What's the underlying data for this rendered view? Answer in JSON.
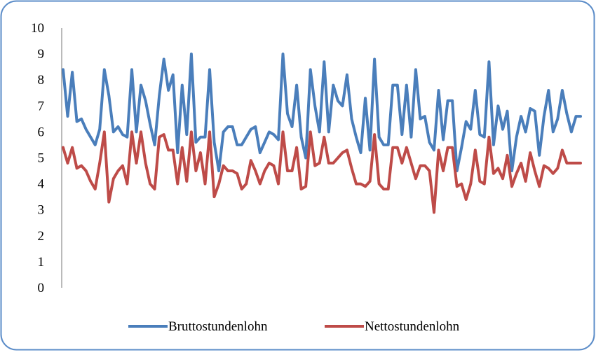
{
  "chart_data": {
    "type": "line",
    "title": "",
    "xlabel": "",
    "ylabel": "",
    "ylim": [
      0,
      10
    ],
    "yticks": [
      "0",
      "1",
      "2",
      "3",
      "4",
      "5",
      "6",
      "7",
      "8",
      "9",
      "10"
    ],
    "grid": false,
    "legend": "bottom",
    "series": [
      {
        "name": "Bruttostundenlohn",
        "color": "#4a7ebb",
        "values": [
          8.4,
          6.6,
          8.3,
          6.4,
          6.5,
          6.1,
          5.8,
          5.5,
          6.1,
          8.4,
          7.4,
          6.0,
          6.2,
          5.9,
          5.8,
          8.4,
          6.0,
          7.8,
          7.2,
          6.3,
          5.5,
          7.4,
          8.8,
          7.6,
          8.2,
          5.2,
          7.8,
          5.9,
          9.0,
          5.6,
          5.8,
          5.8,
          8.4,
          5.6,
          4.5,
          6.0,
          6.2,
          6.2,
          5.5,
          5.5,
          5.8,
          6.1,
          6.2,
          5.2,
          5.6,
          6.0,
          5.9,
          5.7,
          9.0,
          6.7,
          6.2,
          7.8,
          5.8,
          5.0,
          8.4,
          7.0,
          6.0,
          8.7,
          6.0,
          7.8,
          7.2,
          7.0,
          8.2,
          6.5,
          5.8,
          5.2,
          7.3,
          5.3,
          8.8,
          5.8,
          5.5,
          5.5,
          7.8,
          7.8,
          5.9,
          7.8,
          5.8,
          8.4,
          6.5,
          6.6,
          5.6,
          5.3,
          7.6,
          5.7,
          7.2,
          7.2,
          4.5,
          5.4,
          6.4,
          6.1,
          7.6,
          5.9,
          5.8,
          8.7,
          5.5,
          7.0,
          6.1,
          6.8,
          4.5,
          5.8,
          6.6,
          6.0,
          6.9,
          6.8,
          5.1,
          6.6,
          7.6,
          6.0,
          6.5,
          7.6,
          6.7,
          6.0,
          6.6,
          6.6
        ]
      },
      {
        "name": "Nettostundenlohn",
        "color": "#be4b48",
        "values": [
          5.4,
          4.8,
          5.4,
          4.6,
          4.7,
          4.5,
          4.1,
          3.8,
          4.8,
          6.0,
          3.3,
          4.2,
          4.5,
          4.7,
          4.0,
          6.0,
          4.8,
          6.0,
          4.8,
          4.0,
          3.8,
          5.8,
          5.9,
          5.3,
          5.3,
          4.0,
          5.4,
          4.1,
          6.0,
          4.5,
          5.2,
          4.0,
          6.0,
          3.5,
          4.0,
          4.7,
          4.5,
          4.5,
          4.4,
          3.8,
          4.0,
          4.9,
          4.5,
          4.0,
          4.5,
          4.8,
          4.7,
          4.0,
          6.0,
          4.5,
          4.5,
          5.4,
          3.8,
          3.9,
          6.0,
          4.7,
          4.8,
          5.8,
          4.8,
          4.8,
          5.0,
          5.2,
          5.3,
          4.6,
          4.0,
          4.0,
          3.9,
          4.1,
          5.9,
          4.0,
          3.8,
          3.8,
          5.4,
          5.4,
          4.8,
          5.4,
          4.8,
          4.2,
          4.7,
          4.7,
          4.5,
          2.9,
          5.3,
          4.5,
          5.4,
          5.4,
          3.9,
          4.0,
          3.4,
          4.0,
          5.3,
          4.1,
          4.0,
          5.8,
          4.4,
          4.6,
          4.2,
          5.1,
          3.9,
          4.4,
          4.8,
          4.1,
          5.2,
          4.5,
          3.9,
          4.7,
          4.6,
          4.4,
          4.6,
          5.3,
          4.8,
          4.8,
          4.8,
          4.8
        ]
      }
    ]
  }
}
